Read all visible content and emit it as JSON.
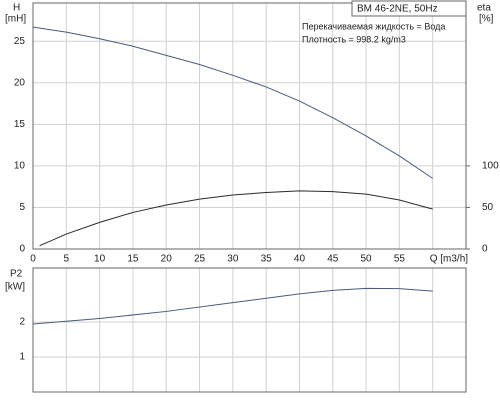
{
  "chart_data": [
    {
      "type": "line",
      "annotations": [
        "BM 46-2NE, 50Hz",
        "Перекачиваемая жидкость = Вода",
        "Плотность = 998.2 kg/m3"
      ],
      "ylabel": "H",
      "yunit": "[mH]",
      "y2label": "eta",
      "y2unit": "[%]",
      "xlim": [
        0,
        65
      ],
      "xticks": [
        0,
        5,
        10,
        15,
        20,
        25,
        30,
        35,
        40,
        45,
        50,
        55,
        {
          "value": 60,
          "label": "Q [m3/h]"
        }
      ],
      "ylim": [
        0,
        29.6
      ],
      "yticks": [
        0,
        5,
        10,
        15,
        20,
        25
      ],
      "y2lim": [
        0,
        296
      ],
      "y2ticks": [
        0,
        50,
        100
      ],
      "grid": true,
      "series": [
        {
          "name": "H",
          "color": "#4a5a7a",
          "axis": "y",
          "x": [
            0,
            5,
            10,
            15,
            20,
            25,
            30,
            35,
            40,
            45,
            50,
            55,
            60
          ],
          "values": [
            26.7,
            26.1,
            25.3,
            24.4,
            23.3,
            22.2,
            20.9,
            19.5,
            17.8,
            15.8,
            13.6,
            11.2,
            8.5
          ]
        },
        {
          "name": "eta",
          "color": "#2a2a2a",
          "axis": "y2",
          "x": [
            1,
            5,
            10,
            15,
            20,
            25,
            30,
            35,
            40,
            45,
            50,
            55,
            60
          ],
          "values": [
            4,
            18,
            32,
            44,
            53,
            60,
            65,
            68,
            70,
            69,
            66,
            59,
            48
          ]
        }
      ]
    },
    {
      "type": "line",
      "ylabel": "P2",
      "yunit": "[kW]",
      "xlim": [
        0,
        65
      ],
      "xgrid": [
        0,
        5,
        10,
        15,
        20,
        25,
        30,
        35,
        40,
        45,
        50,
        55,
        60
      ],
      "ylim": [
        0,
        3.54
      ],
      "yticks": [
        1,
        2
      ],
      "grid": true,
      "series": [
        {
          "name": "P2",
          "color": "#4a5a7a",
          "axis": "y",
          "x": [
            0,
            10,
            20,
            30,
            40,
            45,
            50,
            55,
            60
          ],
          "values": [
            1.94,
            2.1,
            2.3,
            2.55,
            2.8,
            2.9,
            2.96,
            2.95,
            2.88
          ]
        }
      ]
    }
  ]
}
